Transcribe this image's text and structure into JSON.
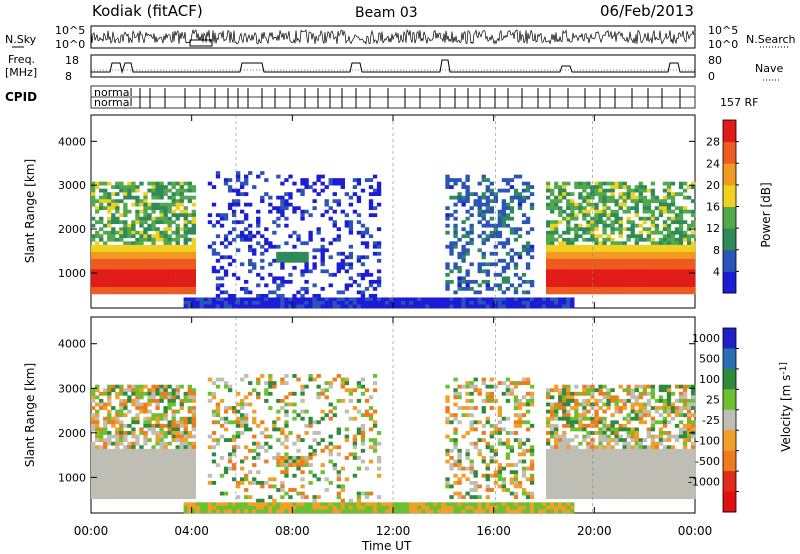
{
  "header": {
    "station": "Kodiak (fitACF)",
    "beam": "Beam 03",
    "date": "06/Feb/2013"
  },
  "strips": {
    "nsky_label": "N.Sky",
    "nsearch_label": "N.Search",
    "freq_label_top": "Freq.",
    "freq_label_bottom": "[MHz]",
    "nave_label": "Nave",
    "cpid_label": "CPID",
    "noise_ticks_left": [
      "10^5",
      "10^0"
    ],
    "noise_ticks_right": [
      "10^5",
      "10^0"
    ],
    "freq_ticks": [
      "18",
      "8"
    ],
    "nave_ticks": [
      "80",
      "0"
    ],
    "cpid_names": [
      "normal",
      "normal",
      "157 RF"
    ]
  },
  "colors": {
    "power_scale": [
      "#1c1cd6",
      "#2b54b8",
      "#2f8a5a",
      "#52a84c",
      "#f0d020",
      "#f09a20",
      "#ee5a20",
      "#e01c18"
    ],
    "velocity_scale": [
      "#2020c8",
      "#2c6fb0",
      "#2f8a3c",
      "#6cc030",
      "#bebeb4",
      "#f0a028",
      "#f07a1e",
      "#e02a1a",
      "#e01010"
    ]
  },
  "chart_data": [
    {
      "type": "heatmap",
      "name": "power",
      "xlabel": "Time UT",
      "ylabel": "Slant Range [km]",
      "x_ticks": [
        "00:00",
        "04:00",
        "08:00",
        "12:00",
        "16:00",
        "20:00",
        "00:00"
      ],
      "y_ticks": [
        1000,
        2000,
        3000,
        4000
      ],
      "ylim": [
        200,
        4600
      ],
      "colorbar_label": "Power [dB]",
      "colorbar_ticks": [
        4,
        8,
        12,
        16,
        20,
        24,
        28
      ],
      "colorbar_range": [
        0,
        32
      ]
    },
    {
      "type": "heatmap",
      "name": "velocity",
      "xlabel": "Time UT",
      "ylabel": "Slant Range [km]",
      "x_ticks": [
        "00:00",
        "04:00",
        "08:00",
        "12:00",
        "16:00",
        "20:00",
        "00:00"
      ],
      "y_ticks": [
        1000,
        2000,
        3000,
        4000
      ],
      "ylim": [
        200,
        4600
      ],
      "colorbar_label": "Velocity [m s^-1]",
      "colorbar_ticks": [
        "1000",
        "500",
        "100",
        "25",
        "-25",
        "-100",
        "-500",
        "-1000"
      ]
    }
  ]
}
